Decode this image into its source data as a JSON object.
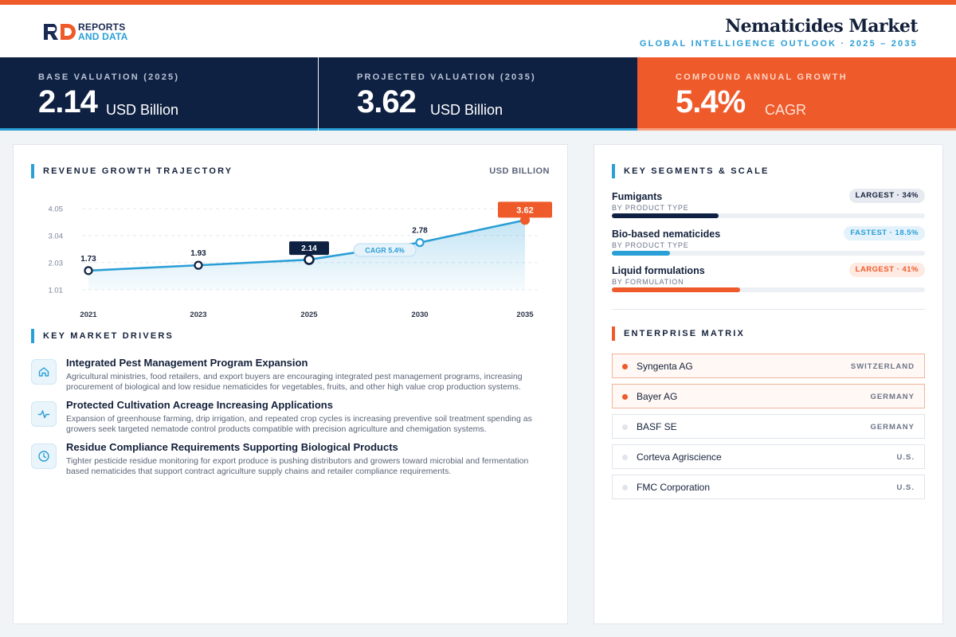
{
  "brand": {
    "line1": "REPORTS",
    "line2": "AND DATA",
    "colors": {
      "navy": "#1b2a52",
      "blue": "#2a9fd6",
      "orange": "#ef5a2a"
    }
  },
  "header": {
    "title": "Nematicides Market",
    "subtitle": "GLOBAL INTELLIGENCE OUTLOOK  ·  2025 – 2035"
  },
  "kpis": [
    {
      "label": "BASE VALUATION (2025)",
      "value": "2.14",
      "unit": "USD Billion"
    },
    {
      "label": "PROJECTED VALUATION (2035)",
      "value": "3.62",
      "unit": "USD Billion"
    },
    {
      "label": "COMPOUND ANNUAL GROWTH",
      "value": "5.4%",
      "unit": "CAGR"
    }
  ],
  "revenue": {
    "title": "REVENUE GROWTH TRAJECTORY",
    "unit": "USD BILLION",
    "cagr_tag": "CAGR 5.4%"
  },
  "chart_data": {
    "type": "area",
    "title": "REVENUE GROWTH TRAJECTORY",
    "ylabel": "USD BILLION",
    "categories": [
      "2021",
      "2023",
      "2025",
      "2030",
      "2035"
    ],
    "values": [
      1.73,
      1.93,
      2.14,
      2.78,
      3.62
    ],
    "value_labels": [
      "1.73",
      "1.93",
      "2.14",
      "2.78",
      "3.62"
    ],
    "y_ticks": [
      "4.05",
      "3.04",
      "2.03",
      "1.01"
    ],
    "ylim": [
      1.01,
      4.05
    ],
    "grid": true,
    "annotation": "CAGR 5.4%"
  },
  "drivers": {
    "title": "KEY MARKET DRIVERS",
    "items": [
      {
        "icon": "home-icon",
        "title": "Integrated Pest Management Program Expansion",
        "text": "Agricultural ministries, food retailers, and export buyers are encouraging integrated pest management programs, increasing procurement of biological and low residue nematicides for vegetables, fruits, and other high value crop production systems."
      },
      {
        "icon": "pulse-icon",
        "title": "Protected Cultivation Acreage Increasing Applications",
        "text": "Expansion of greenhouse farming, drip irrigation, and repeated crop cycles is increasing preventive soil treatment spending as growers seek targeted nematode control products compatible with precision agriculture and chemigation systems."
      },
      {
        "icon": "clock-icon",
        "title": "Residue Compliance Requirements Supporting Biological Products",
        "text": "Tighter pesticide residue monitoring for export produce is pushing distributors and growers toward microbial and fermentation based nematicides that support contract agriculture supply chains and retailer compliance requirements."
      }
    ]
  },
  "segments": {
    "title": "KEY SEGMENTS & SCALE",
    "items": [
      {
        "name": "Fumigants",
        "sub": "BY PRODUCT TYPE",
        "badge": "LARGEST · 34%",
        "share": 0.34,
        "color": "#0f2142"
      },
      {
        "name": "Bio-based nematicides",
        "sub": "BY PRODUCT TYPE",
        "badge": "FASTEST · 18.5%",
        "share": 0.185,
        "color": "#2a9fd6"
      },
      {
        "name": "Liquid formulations",
        "sub": "BY FORMULATION",
        "badge": "LARGEST · 41%",
        "share": 0.41,
        "color": "#ef5a2a"
      }
    ]
  },
  "enterprise": {
    "title": "ENTERPRISE MATRIX",
    "items": [
      {
        "name": "Syngenta AG",
        "country": "SWITZERLAND"
      },
      {
        "name": "Bayer AG",
        "country": "GERMANY"
      },
      {
        "name": "BASF SE",
        "country": "GERMANY"
      },
      {
        "name": "Corteva Agriscience",
        "country": "U.S."
      },
      {
        "name": "FMC Corporation",
        "country": "U.S."
      }
    ]
  }
}
